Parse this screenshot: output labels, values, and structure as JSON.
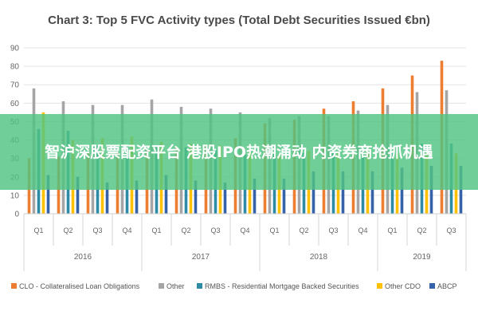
{
  "chart_data": {
    "type": "bar",
    "title": "Chart 3: Top 5 FVC Activity types (Total Debt Securities Issued €bn)",
    "ylim": [
      0,
      90
    ],
    "yticks": [
      0,
      10,
      20,
      30,
      40,
      50,
      60,
      70,
      80,
      90
    ],
    "grid": true,
    "legend_position": "bottom",
    "categories": [
      "Q1",
      "Q2",
      "Q3",
      "Q4",
      "Q1",
      "Q2",
      "Q3",
      "Q4",
      "Q1",
      "Q2",
      "Q3",
      "Q4",
      "Q1",
      "Q2",
      "Q3"
    ],
    "years": [
      {
        "label": "2016",
        "quarters": 4
      },
      {
        "label": "2017",
        "quarters": 4
      },
      {
        "label": "2018",
        "quarters": 4
      },
      {
        "label": "2019",
        "quarters": 3
      }
    ],
    "series": [
      {
        "name": "CLO - Collateralised Loan Obligations",
        "color": "#ed7d31",
        "values": [
          30,
          31,
          33,
          33,
          35,
          36,
          37,
          41,
          49,
          51,
          57,
          61,
          68,
          75,
          83
        ]
      },
      {
        "name": "Other",
        "color": "#a5a5a5",
        "values": [
          68,
          61,
          59,
          59,
          62,
          58,
          57,
          55,
          52,
          53,
          53,
          56,
          59,
          66,
          67
        ]
      },
      {
        "name": "RMBS - Residential Mortgage Backed Securities",
        "color": "#2e8ba8",
        "values": [
          46,
          45,
          37,
          36,
          37,
          36,
          35,
          32,
          33,
          33,
          34,
          34,
          34,
          38,
          38
        ]
      },
      {
        "name": "Other CDO",
        "color": "#ffc000",
        "values": [
          55,
          40,
          41,
          42,
          39,
          38,
          37,
          35,
          32,
          34,
          33,
          34,
          33,
          33,
          33
        ]
      },
      {
        "name": "ABCP",
        "color": "#3562a8",
        "values": [
          21,
          20,
          17,
          18,
          21,
          18,
          17,
          19,
          19,
          23,
          23,
          23,
          25,
          26,
          26
        ]
      }
    ]
  },
  "overlay": {
    "text": "智沪深股票配资平台 港股IPO热潮涌动 内资券商抢抓机遇"
  }
}
